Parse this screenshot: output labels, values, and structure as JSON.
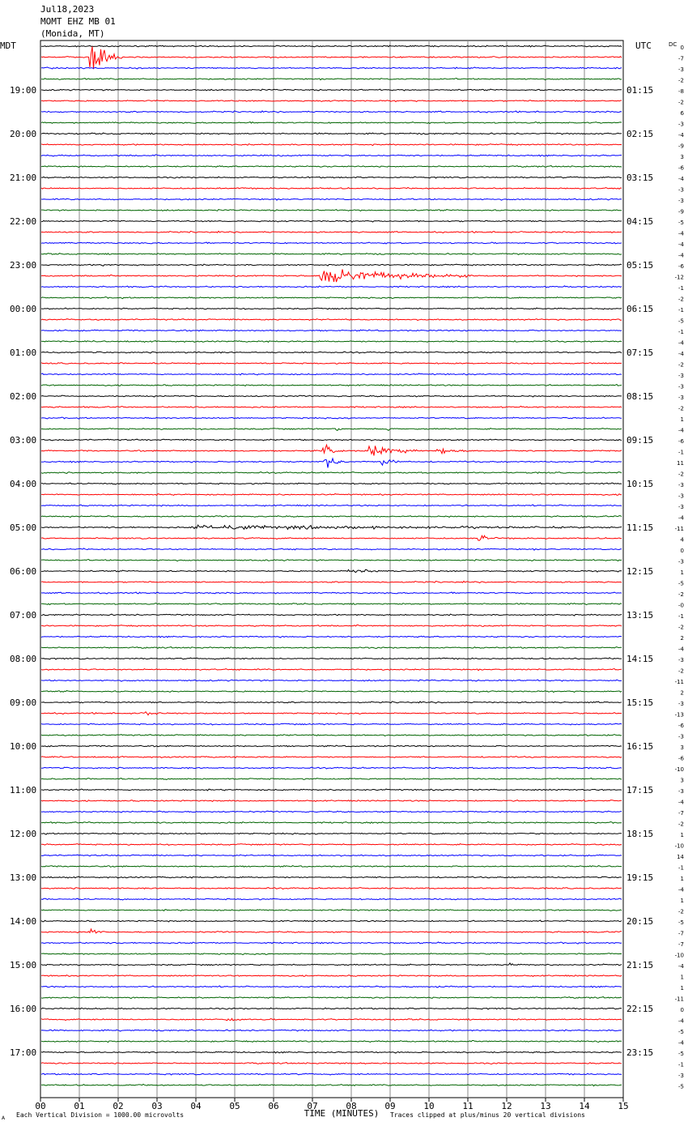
{
  "header": {
    "date": "Jul18,2023",
    "station": "MOMT EHZ MB 01",
    "location": "(Monida, MT)"
  },
  "chart_data": {
    "type": "line",
    "left_zone_label": "MDT",
    "right_zone_label": "UTC",
    "dc_label": "DC",
    "xlabel": "TIME (MINUTES)",
    "x_ticks": [
      "00",
      "01",
      "02",
      "03",
      "04",
      "05",
      "06",
      "07",
      "08",
      "09",
      "10",
      "11",
      "12",
      "13",
      "14",
      "15"
    ],
    "trace_count": 96,
    "trace_colors": [
      "#000000",
      "#ff0000",
      "#0000ff",
      "#006400"
    ],
    "left_hour_labels": [
      "19:00",
      "20:00",
      "21:00",
      "22:00",
      "23:00",
      "00:00",
      "01:00",
      "02:00",
      "03:00",
      "04:00",
      "05:00",
      "06:00",
      "07:00",
      "08:00",
      "09:00",
      "10:00",
      "11:00",
      "12:00",
      "13:00",
      "14:00",
      "15:00",
      "16:00",
      "17:00"
    ],
    "right_hour_labels": [
      "01:15",
      "02:15",
      "03:15",
      "04:15",
      "05:15",
      "06:15",
      "07:15",
      "08:15",
      "09:15",
      "10:15",
      "11:15",
      "12:15",
      "13:15",
      "14:15",
      "15:15",
      "16:15",
      "17:15",
      "18:15",
      "19:15",
      "20:15",
      "21:15",
      "22:15",
      "23:15"
    ],
    "dc_offsets": [
      "0",
      "-7",
      "-3",
      "-2",
      "-8",
      "-2",
      "6",
      "-3",
      "-4",
      "-9",
      "3",
      "-6",
      "-4",
      "-3",
      "-3",
      "-9",
      "-5",
      "-4",
      "-4",
      "-4",
      "-6",
      "-12",
      "-1",
      "-2",
      "-1",
      "-5",
      "-1",
      "-4",
      "-4",
      "-2",
      "-3",
      "-3",
      "-3",
      "-2",
      "1",
      "-4",
      "-6",
      "-1",
      "11",
      "-2",
      "-3",
      "-3",
      "-3",
      "-4",
      "-11",
      "4",
      "0",
      "-3",
      "1",
      "-5",
      "-2",
      "-0",
      "-1",
      "-2",
      "2",
      "-4",
      "-3",
      "-2",
      "-11",
      "2",
      "-3",
      "-13",
      "-6",
      "-3",
      "3",
      "-6",
      "-10",
      "3",
      "-3",
      "-4",
      "-7",
      "-2",
      "1",
      "-10",
      "14",
      "-1",
      "1",
      "-4",
      "1",
      "-2",
      "-5",
      "-7",
      "-7",
      "-10",
      "-4",
      "1",
      "1",
      "-11",
      "0",
      "-4",
      "-5",
      "-4",
      "-5",
      "-1",
      "-3",
      "-5"
    ],
    "footer_left": "Each Vertical Division = 1000.00 microvolts",
    "footer_right": "Traces clipped at plus/minus 20 vertical divisions",
    "footer_mark": "A"
  }
}
